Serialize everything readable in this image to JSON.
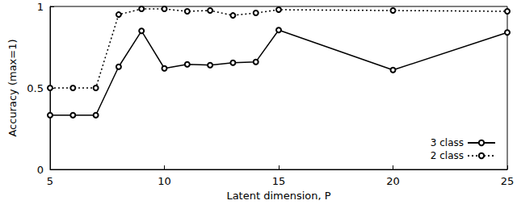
{
  "chart_data": {
    "type": "line",
    "x_label": "Latent dimension, P",
    "y_label": "Accuracy (max=1)",
    "x": [
      5,
      6,
      7,
      8,
      9,
      10,
      11,
      12,
      13,
      14,
      15,
      20,
      25
    ],
    "series": [
      {
        "name": "3 class",
        "color": "#000000",
        "marker": "circle",
        "line_style": "solid",
        "values": [
          0.333,
          0.333,
          0.333,
          0.63,
          0.85,
          0.62,
          0.645,
          0.64,
          0.655,
          0.66,
          0.855,
          0.61,
          0.84
        ]
      },
      {
        "name": "2 class",
        "color": "#000000",
        "marker": "circle",
        "line_style": "dotted",
        "values": [
          0.5,
          0.5,
          0.5,
          0.95,
          0.985,
          0.985,
          0.97,
          0.975,
          0.945,
          0.96,
          0.98,
          0.975,
          0.97
        ]
      }
    ],
    "xlim": [
      5,
      25
    ],
    "xticks": [
      5,
      10,
      15,
      20,
      25
    ],
    "ylim": [
      0,
      1
    ],
    "yticks": [
      0,
      0.5,
      1
    ],
    "grid": false,
    "legend": "lower right"
  }
}
